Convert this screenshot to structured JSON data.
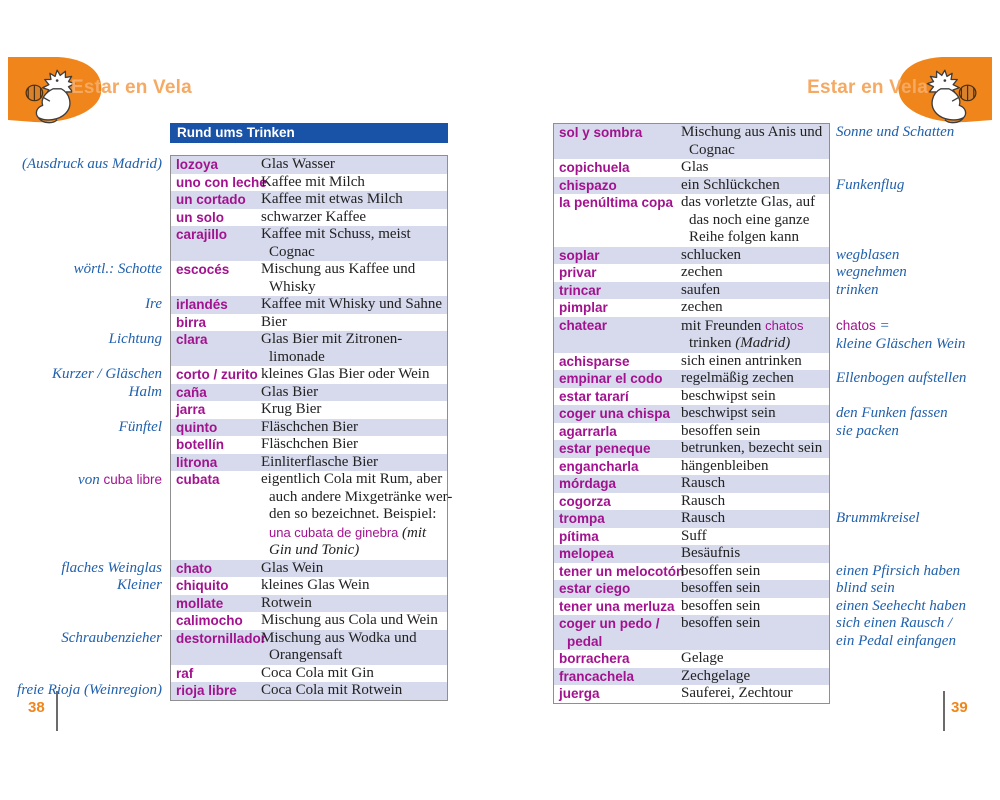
{
  "colors": {
    "accent_orange": "#F0861B",
    "header_text_orange": "#F5A962",
    "title_bar_blue": "#1853A8",
    "term_magenta": "#A2128F",
    "margin_note_blue": "#2060AC",
    "row_stripe_lavender": "#D7DAEC",
    "page_number_orange": "#F0861B"
  },
  "icons": {
    "left_corner": "corner-decoration",
    "right_corner": "corner-decoration",
    "left_mascot": "rooster-doodle-icon",
    "right_mascot": "rooster-doodle-icon"
  },
  "page_left": {
    "header": "Estar en Vela",
    "section_title": "Rund ums Trinken",
    "page_number": "38",
    "rows": [
      {
        "term": "lozoya",
        "def": [
          [
            "Glas Wasser"
          ]
        ]
      },
      {
        "term": "uno con leche",
        "def": [
          [
            "Kaffee mit Milch"
          ]
        ]
      },
      {
        "term": "un cortado",
        "def": [
          [
            "Kaffee mit etwas Milch"
          ]
        ]
      },
      {
        "term": "un solo",
        "def": [
          [
            "schwarzer Kaffee"
          ]
        ]
      },
      {
        "term": "carajillo",
        "def": [
          [
            "Kaffee mit Schuss, meist"
          ],
          [
            "Cognac"
          ]
        ]
      },
      {
        "term": "escocés",
        "def": [
          [
            "Mischung aus Kaffee und"
          ],
          [
            "Whisky"
          ]
        ]
      },
      {
        "term": "irlandés",
        "def": [
          [
            "Kaffee mit Whisky und Sahne"
          ]
        ]
      },
      {
        "term": "birra",
        "def": [
          [
            "Bier"
          ]
        ]
      },
      {
        "term": "clara",
        "def": [
          [
            "Glas Bier mit Zitronen-"
          ],
          [
            "limonade"
          ]
        ]
      },
      {
        "term": "corto / zurito",
        "def": [
          [
            "kleines Glas Bier oder Wein"
          ]
        ]
      },
      {
        "term": "caña",
        "def": [
          [
            "Glas Bier"
          ]
        ]
      },
      {
        "term": "jarra",
        "def": [
          [
            "Krug Bier"
          ]
        ]
      },
      {
        "term": "quinto",
        "def": [
          [
            "Fläschchen Bier"
          ]
        ]
      },
      {
        "term": "botellín",
        "def": [
          [
            "Fläschchen Bier"
          ]
        ]
      },
      {
        "term": "litrona",
        "def": [
          [
            "Einliterflasche Bier"
          ]
        ]
      },
      {
        "term": "cubata",
        "def": [
          [
            "eigentlich Cola mit Rum, aber"
          ],
          [
            "auch andere Mixgetränke wer-"
          ],
          [
            "den so bezeichnet. Beispiel:"
          ],
          [
            {
              "t": "una cubata de ginebra ",
              "s": "m"
            },
            {
              "t": "(mit",
              "s": "i"
            }
          ],
          [
            {
              "t": "Gin und Tonic)",
              "s": "i"
            }
          ]
        ]
      },
      {
        "term": "chato",
        "def": [
          [
            "Glas Wein"
          ]
        ]
      },
      {
        "term": "chiquito",
        "def": [
          [
            "kleines Glas Wein"
          ]
        ]
      },
      {
        "term": "mollate",
        "def": [
          [
            "Rotwein"
          ]
        ]
      },
      {
        "term": "calimocho",
        "def": [
          [
            "Mischung aus Cola und Wein"
          ]
        ]
      },
      {
        "term": "destornillador",
        "def": [
          [
            "Mischung aus Wodka und"
          ],
          [
            "Orangensaft"
          ]
        ]
      },
      {
        "term": "raf",
        "def": [
          [
            "Coca Cola mit Gin"
          ]
        ]
      },
      {
        "term": "rioja libre",
        "def": [
          [
            "Coca Cola mit Rotwein"
          ]
        ]
      }
    ],
    "notes": [
      {
        "row": 0,
        "lines": [
          [
            "(Ausdruck aus Madrid)"
          ]
        ]
      },
      {
        "row": 5,
        "lines": [
          [
            "wörtl.: Schotte"
          ]
        ]
      },
      {
        "row": 6,
        "lines": [
          [
            "Ire"
          ]
        ]
      },
      {
        "row": 8,
        "lines": [
          [
            "Lichtung"
          ]
        ]
      },
      {
        "row": 9,
        "lines": [
          [
            "Kurzer / Gläschen"
          ],
          [
            "Halm"
          ]
        ]
      },
      {
        "row": 12,
        "lines": [
          [
            "Fünftel"
          ]
        ]
      },
      {
        "row": 15,
        "lines": [
          [
            {
              "t": "von "
            },
            {
              "t": "cuba libre",
              "s": "m"
            }
          ]
        ]
      },
      {
        "row": 16,
        "lines": [
          [
            "flaches Weinglas"
          ]
        ]
      },
      {
        "row": 17,
        "lines": [
          [
            "Kleiner"
          ]
        ]
      },
      {
        "row": 20,
        "lines": [
          [
            "Schraubenzieher"
          ]
        ]
      },
      {
        "row": 22,
        "lines": [
          [
            "freie Rioja (Weinregion)"
          ]
        ]
      }
    ]
  },
  "page_right": {
    "header": "Estar en Vela",
    "page_number": "39",
    "rows": [
      {
        "term": "sol y sombra",
        "def": [
          [
            "Mischung aus Anis und"
          ],
          [
            "Cognac"
          ]
        ]
      },
      {
        "term": "copichuela",
        "def": [
          [
            "Glas"
          ]
        ]
      },
      {
        "term": "chispazo",
        "def": [
          [
            "ein Schlückchen"
          ]
        ]
      },
      {
        "term": "la penúltima copa",
        "def": [
          [
            "das vorletzte Glas, auf"
          ],
          [
            "das noch eine ganze"
          ],
          [
            "Reihe folgen kann"
          ]
        ]
      },
      {
        "term": "soplar",
        "def": [
          [
            "schlucken"
          ]
        ]
      },
      {
        "term": "privar",
        "def": [
          [
            "zechen"
          ]
        ]
      },
      {
        "term": "trincar",
        "def": [
          [
            "saufen"
          ]
        ]
      },
      {
        "term": "pimplar",
        "def": [
          [
            "zechen"
          ]
        ]
      },
      {
        "term": "chatear",
        "def": [
          [
            {
              "t": "mit Freunden "
            },
            {
              "t": "chatos",
              "s": "m"
            }
          ],
          [
            {
              "t": "trinken "
            },
            {
              "t": "(Madrid)",
              "s": "i"
            }
          ]
        ]
      },
      {
        "term": "achisparse",
        "def": [
          [
            "sich einen antrinken"
          ]
        ]
      },
      {
        "term": "empinar el codo",
        "def": [
          [
            "regelmäßig zechen"
          ]
        ]
      },
      {
        "term": "estar tararí",
        "def": [
          [
            "beschwipst sein"
          ]
        ]
      },
      {
        "term": "coger una chispa",
        "def": [
          [
            "beschwipst sein"
          ]
        ]
      },
      {
        "term": "agarrarla",
        "def": [
          [
            "besoffen sein"
          ]
        ]
      },
      {
        "term": "estar peneque",
        "def": [
          [
            "betrunken, bezecht sein"
          ]
        ]
      },
      {
        "term": "engancharla",
        "def": [
          [
            "hängenbleiben"
          ]
        ]
      },
      {
        "term": "mórdaga",
        "def": [
          [
            "Rausch"
          ]
        ]
      },
      {
        "term": "cogorza",
        "def": [
          [
            "Rausch"
          ]
        ]
      },
      {
        "term": "trompa",
        "def": [
          [
            "Rausch"
          ]
        ]
      },
      {
        "term": "pítima",
        "def": [
          [
            "Suff"
          ]
        ]
      },
      {
        "term": "melopea",
        "def": [
          [
            "Besäufnis"
          ]
        ]
      },
      {
        "term": "tener un melocotón",
        "def": [
          [
            "besoffen sein"
          ]
        ]
      },
      {
        "term": "estar ciego",
        "def": [
          [
            "besoffen sein"
          ]
        ]
      },
      {
        "term": "tener una merluza",
        "def": [
          [
            "besoffen sein"
          ]
        ]
      },
      {
        "term": [
          "coger un pedo /",
          "pedal"
        ],
        "def": [
          [
            "besoffen sein"
          ]
        ]
      },
      {
        "term": "borrachera",
        "def": [
          [
            "Gelage"
          ]
        ]
      },
      {
        "term": "francachela",
        "def": [
          [
            "Zechgelage"
          ]
        ]
      },
      {
        "term": "juerga",
        "def": [
          [
            "Sauferei, Zechtour"
          ]
        ]
      }
    ],
    "notes": [
      {
        "row": 0,
        "lines": [
          [
            "Sonne und Schatten"
          ]
        ]
      },
      {
        "row": 2,
        "lines": [
          [
            "Funkenflug"
          ]
        ]
      },
      {
        "row": 4,
        "lines": [
          [
            "wegblasen"
          ]
        ]
      },
      {
        "row": 5,
        "lines": [
          [
            "wegnehmen"
          ]
        ]
      },
      {
        "row": 6,
        "lines": [
          [
            "trinken"
          ]
        ]
      },
      {
        "row": 8,
        "lines": [
          [
            {
              "t": "chatos",
              "s": "m"
            },
            {
              "t": " ="
            }
          ],
          [
            "kleine Gläschen Wein"
          ]
        ]
      },
      {
        "row": 10,
        "lines": [
          [
            "Ellenbogen aufstellen"
          ]
        ]
      },
      {
        "row": 12,
        "lines": [
          [
            "den Funken fassen"
          ]
        ]
      },
      {
        "row": 13,
        "lines": [
          [
            "sie packen"
          ]
        ]
      },
      {
        "row": 18,
        "lines": [
          [
            "Brummkreisel"
          ]
        ]
      },
      {
        "row": 21,
        "lines": [
          [
            "einen Pfirsich haben"
          ]
        ]
      },
      {
        "row": 22,
        "lines": [
          [
            "blind sein"
          ]
        ]
      },
      {
        "row": 23,
        "lines": [
          [
            "einen Seehecht haben"
          ]
        ]
      },
      {
        "row": 24,
        "lines": [
          [
            "sich einen Rausch /"
          ],
          [
            "ein Pedal einfangen"
          ]
        ]
      }
    ]
  }
}
